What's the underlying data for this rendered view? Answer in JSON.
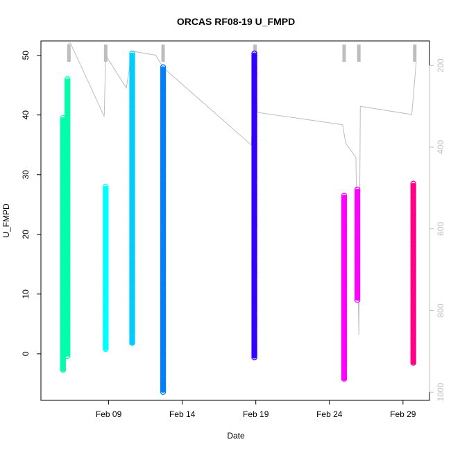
{
  "chart_data": {
    "type": "scatter",
    "title": "ORCAS RF08-19 U_FMPD",
    "xlabel": "Date",
    "ylabel": "U_FMPD",
    "x_ticks": [
      "Feb 09",
      "Feb 14",
      "Feb 19",
      "Feb 24",
      "Feb 29"
    ],
    "x_tick_days": [
      9,
      14,
      19,
      24,
      29
    ],
    "xlim_days": [
      4.4,
      30.8
    ],
    "ylim": [
      -7.8,
      52.4
    ],
    "y_ticks": [
      0,
      10,
      20,
      30,
      40,
      50
    ],
    "y2_ticks": [
      200,
      400,
      600,
      800,
      1000
    ],
    "y2_direction": "reversed",
    "y2_lim": [
      140,
      1020
    ],
    "grid": false,
    "legend": "none",
    "series": [
      {
        "day": 5.9,
        "ymin": -3.0,
        "ymax": 39.5,
        "color": "#00ffaa"
      },
      {
        "day": 6.2,
        "ymin": -0.5,
        "ymax": 46.0,
        "color": "#00ffaa"
      },
      {
        "day": 8.8,
        "ymin": 0.5,
        "ymax": 28.0,
        "color": "#00ffff"
      },
      {
        "day": 10.6,
        "ymin": 1.5,
        "ymax": 50.3,
        "color": "#00ccff"
      },
      {
        "day": 12.7,
        "ymin": -6.5,
        "ymax": 48.0,
        "color": "#0080ff"
      },
      {
        "day": 18.9,
        "ymin": -0.8,
        "ymax": 50.3,
        "color": "#3300ff"
      },
      {
        "day": 25.0,
        "ymin": -4.5,
        "ymax": 26.5,
        "color": "#ff00ff"
      },
      {
        "day": 25.9,
        "ymin": 9.0,
        "ymax": 27.5,
        "color": "#ff00ff"
      },
      {
        "day": 29.7,
        "ymin": -1.8,
        "ymax": 28.5,
        "color": "#ff0088"
      }
    ],
    "secondary_track": {
      "color": "#bdbdbd",
      "x_days": [
        6.2,
        6.4,
        8.7,
        8.8,
        10.2,
        10.6,
        12.2,
        12.7,
        18.7,
        18.95,
        19.1,
        24.9,
        25.1,
        25.8,
        26.0,
        26.1,
        29.6,
        29.9
      ],
      "y_values": [
        150,
        145,
        325,
        175,
        255,
        165,
        175,
        205,
        395,
        160,
        315,
        345,
        390,
        425,
        860,
        300,
        320,
        190
      ]
    },
    "flight_spikes": [
      {
        "day": 6.3,
        "top": 149
      },
      {
        "day": 8.8,
        "top": 149
      },
      {
        "day": 12.7,
        "top": 149
      },
      {
        "day": 18.95,
        "top": 149
      },
      {
        "day": 25.0,
        "top": 149
      },
      {
        "day": 26.0,
        "top": 149
      },
      {
        "day": 29.8,
        "top": 149
      }
    ]
  }
}
